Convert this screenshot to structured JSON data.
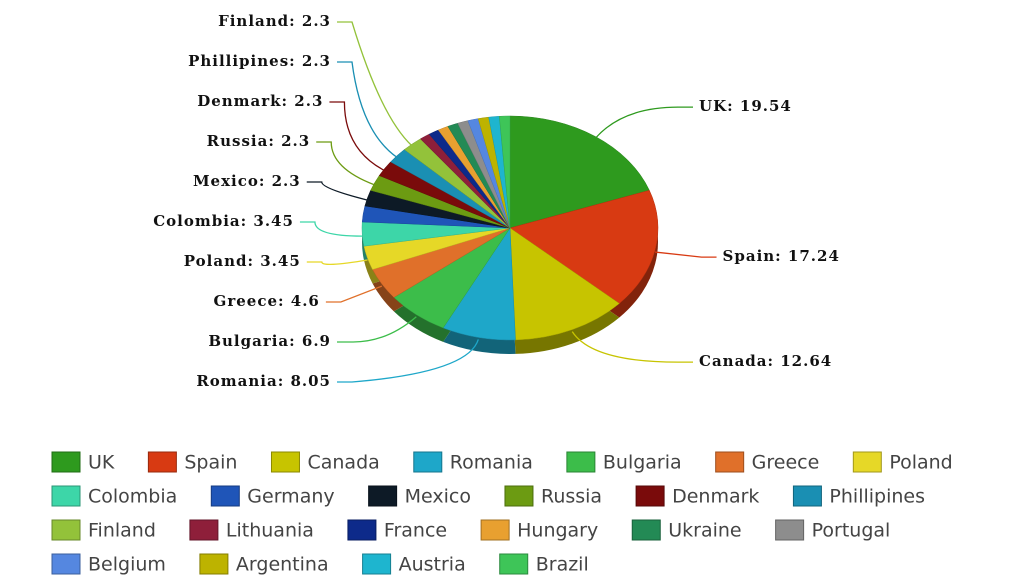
{
  "chart_data": {
    "type": "pie",
    "categories": [
      "UK",
      "Spain",
      "Canada",
      "Romania",
      "Bulgaria",
      "Greece",
      "Poland",
      "Colombia",
      "Germany",
      "Mexico",
      "Russia",
      "Denmark",
      "Phillipines",
      "Finland",
      "Lithuania",
      "France",
      "Hungary",
      "Ukraine",
      "Portugal",
      "Belgium",
      "Argentina",
      "Austria",
      "Brazil"
    ],
    "values": [
      19.54,
      17.24,
      12.64,
      8.05,
      6.9,
      4.6,
      3.45,
      3.45,
      2.3,
      2.3,
      2.3,
      2.3,
      2.3,
      2.3,
      1.15,
      1.15,
      1.15,
      1.15,
      1.15,
      1.15,
      1.15,
      1.15,
      1.15
    ],
    "value_labels": [
      "UK: 19.54",
      "Spain: 17.24",
      "Canada: 12.64",
      "Romania: 8.05",
      "Bulgaria: 6.9",
      "Greece: 4.6",
      "Poland: 3.45",
      "Colombia: 3.45",
      null,
      "Mexico: 2.3",
      "Russia: 2.3",
      "Denmark: 2.3",
      "Phillipines: 2.3",
      "Finland: 2.3",
      null,
      null,
      null,
      null,
      null,
      null,
      null,
      null,
      null
    ],
    "colors": [
      "#2e9a1e",
      "#d83a12",
      "#c7c400",
      "#1ea7c9",
      "#3cbd4a",
      "#e0702a",
      "#e6d827",
      "#3dd6a8",
      "#1f55b8",
      "#0d1a26",
      "#6c9b12",
      "#7a0b0b",
      "#1a8fb3",
      "#93c23a",
      "#8e1f3a",
      "#0d2a8a",
      "#e8a030",
      "#238a55",
      "#8d8d8d",
      "#5587e0",
      "#bdb300",
      "#1eb5cf",
      "#3ec558"
    ]
  }
}
